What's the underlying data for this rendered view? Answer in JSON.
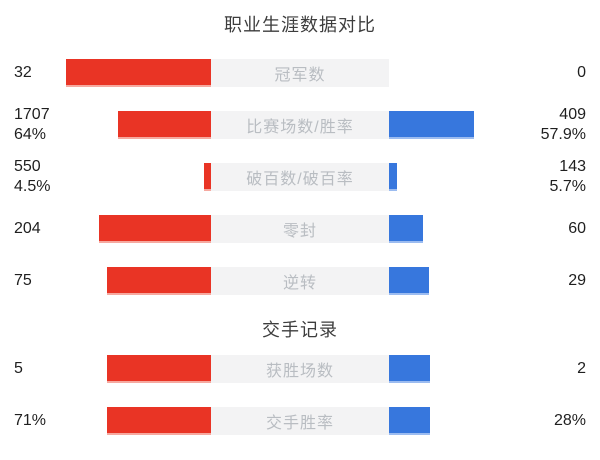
{
  "colors": {
    "red_bar": "#e93425",
    "red_bar_edge": "#f6a9a0",
    "blue_bar": "#3777dd",
    "blue_bar_edge": "#9cbcf0",
    "center_panel": "#f3f3f4",
    "panel_label_text": "#b9bdc2",
    "value_text": "#1f1f1f",
    "title_text": "#3d3d3d",
    "background": "#ffffff"
  },
  "sections": [
    {
      "title": "职业生涯数据对比",
      "rows": [
        {
          "label": "冠军数",
          "left": {
            "line1": "32"
          },
          "right": {
            "line1": "0"
          },
          "red_w": 145,
          "blue_w": 0
        },
        {
          "label": "比赛场数/胜率",
          "left": {
            "line1": "1707",
            "line2": "64%"
          },
          "right": {
            "line1": "409",
            "line2": "57.9%"
          },
          "red_w": 93,
          "blue_w": 85
        },
        {
          "label": "破百数/破百率",
          "left": {
            "line1": "550",
            "line2": "4.5%"
          },
          "right": {
            "line1": "143",
            "line2": "5.7%"
          },
          "red_w": 7,
          "blue_w": 8
        },
        {
          "label": "零封",
          "left": {
            "line1": "204"
          },
          "right": {
            "line1": "60"
          },
          "red_w": 112,
          "blue_w": 34
        },
        {
          "label": "逆转",
          "left": {
            "line1": "75"
          },
          "right": {
            "line1": "29"
          },
          "red_w": 104,
          "blue_w": 40
        }
      ]
    },
    {
      "title": "交手记录",
      "rows": [
        {
          "label": "获胜场数",
          "left": {
            "line1": "5"
          },
          "right": {
            "line1": "2"
          },
          "red_w": 104,
          "blue_w": 41
        },
        {
          "label": "交手胜率",
          "left": {
            "line1": "71%"
          },
          "right": {
            "line1": "28%"
          },
          "red_w": 104,
          "blue_w": 41
        }
      ]
    }
  ],
  "chart_data": [
    {
      "type": "bar",
      "title": "职业生涯数据对比",
      "orientation": "horizontal-diverging",
      "categories": [
        "冠军数",
        "比赛场数/胜率",
        "破百数/破百率",
        "零封",
        "逆转"
      ],
      "series": [
        {
          "name": "left-player-red",
          "color": "#e93425",
          "values": [
            32,
            1707,
            550,
            204,
            75
          ],
          "percent_labels": [
            null,
            "64%",
            "4.5%",
            null,
            null
          ]
        },
        {
          "name": "right-player-blue",
          "color": "#3777dd",
          "values": [
            0,
            409,
            143,
            60,
            29
          ],
          "percent_labels": [
            null,
            "57.9%",
            "5.7%",
            null,
            null
          ]
        }
      ],
      "legend": "none",
      "grid": false
    },
    {
      "type": "bar",
      "title": "交手记录",
      "orientation": "horizontal-diverging",
      "categories": [
        "获胜场数",
        "交手胜率"
      ],
      "series": [
        {
          "name": "left-player-red",
          "color": "#e93425",
          "values": [
            5,
            71
          ],
          "value_labels": [
            "5",
            "71%"
          ]
        },
        {
          "name": "right-player-blue",
          "color": "#3777dd",
          "values": [
            2,
            28
          ],
          "value_labels": [
            "2",
            "28%"
          ]
        }
      ],
      "legend": "none",
      "grid": false
    }
  ]
}
